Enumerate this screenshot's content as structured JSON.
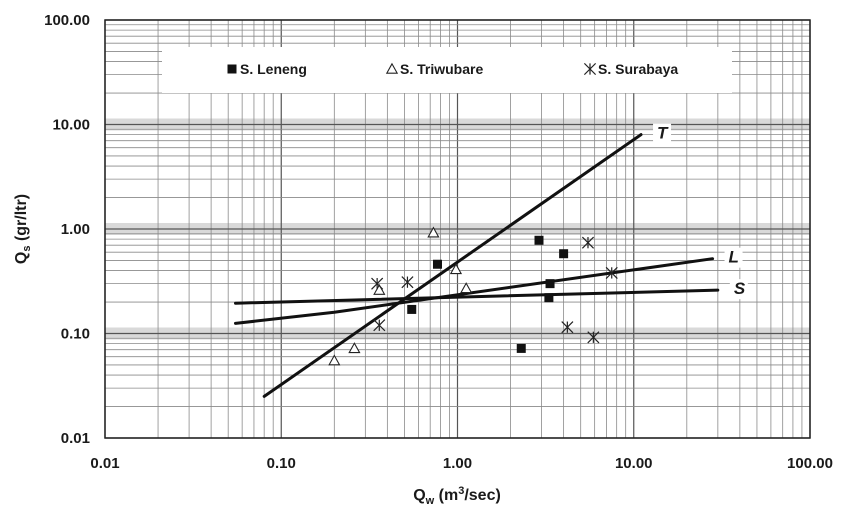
{
  "chart_data": {
    "type": "scatter",
    "xscale": "log",
    "yscale": "log",
    "xlim": [
      0.01,
      100
    ],
    "ylim": [
      0.01,
      100
    ],
    "xlabel": {
      "main": "Q",
      "sub": "w",
      "rest": " (m",
      "sup": "3",
      "end": "/sec)"
    },
    "ylabel": {
      "main": "Q",
      "sub": "s",
      "rest": " (gr/ltr)"
    },
    "xticks": [
      0.01,
      0.1,
      1,
      10,
      100
    ],
    "xtick_labels": [
      "0.01",
      "0.10",
      "1.00",
      "10.00",
      "100.00"
    ],
    "yticks": [
      0.01,
      0.1,
      1,
      10,
      100
    ],
    "ytick_labels": [
      "0.01",
      "0.10",
      "1.00",
      "10.00",
      "100.00"
    ],
    "grid": true,
    "legend_position": "top",
    "series": [
      {
        "name": "S. Leneng",
        "marker": "filled-square",
        "points": [
          [
            0.55,
            0.17
          ],
          [
            0.77,
            0.46
          ],
          [
            2.3,
            0.072
          ],
          [
            2.9,
            0.78
          ],
          [
            3.3,
            0.22
          ],
          [
            3.35,
            0.3
          ],
          [
            4.0,
            0.58
          ]
        ]
      },
      {
        "name": "S. Triwubare",
        "marker": "open-triangle",
        "points": [
          [
            0.2,
            0.055
          ],
          [
            0.26,
            0.072
          ],
          [
            0.36,
            0.26
          ],
          [
            0.73,
            0.92
          ],
          [
            0.98,
            0.41
          ],
          [
            1.12,
            0.27
          ]
        ]
      },
      {
        "name": "S. Surabaya",
        "marker": "star-cross",
        "points": [
          [
            0.35,
            0.3
          ],
          [
            0.36,
            0.12
          ],
          [
            0.52,
            0.31
          ],
          [
            4.2,
            0.115
          ],
          [
            5.5,
            0.74
          ],
          [
            5.9,
            0.092
          ],
          [
            7.5,
            0.38
          ]
        ]
      }
    ],
    "lines": [
      {
        "label": "T",
        "points": [
          [
            0.08,
            0.025
          ],
          [
            11,
            8.0
          ]
        ]
      },
      {
        "label": "L",
        "points": [
          [
            0.055,
            0.125
          ],
          [
            0.2,
            0.16
          ],
          [
            28,
            0.52
          ]
        ]
      },
      {
        "label": "S",
        "points": [
          [
            0.055,
            0.195
          ],
          [
            30,
            0.26
          ]
        ]
      }
    ]
  }
}
